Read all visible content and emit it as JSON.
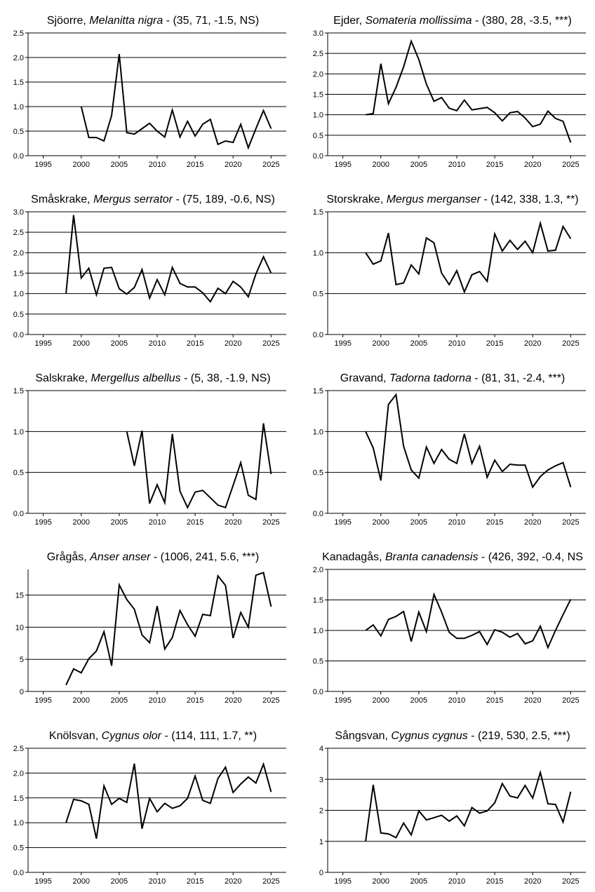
{
  "chart_data": [
    {
      "type": "line",
      "title_common": "Sjöorre",
      "title_latin": "Melanitta nigra",
      "title_stats": "(35, 71, -1.5, NS)",
      "xlim": [
        1993,
        2027
      ],
      "ylim": [
        0,
        2.5
      ],
      "yticks": [
        "0.0",
        "0.5",
        "1.0",
        "1.5",
        "2.0",
        "2.5"
      ],
      "xticks": [
        "1995",
        "2000",
        "2005",
        "2010",
        "2015",
        "2020",
        "2025"
      ],
      "x": [
        2000,
        2001,
        2002,
        2003,
        2004,
        2005,
        2006,
        2007,
        2008,
        2009,
        2010,
        2011,
        2012,
        2013,
        2014,
        2015,
        2016,
        2017,
        2018,
        2019,
        2020,
        2021,
        2022,
        2023,
        2024,
        2025
      ],
      "values": [
        1.0,
        0.37,
        0.37,
        0.3,
        0.82,
        2.07,
        0.47,
        0.44,
        0.55,
        0.66,
        0.5,
        0.38,
        0.93,
        0.38,
        0.7,
        0.4,
        0.64,
        0.74,
        0.23,
        0.3,
        0.27,
        0.64,
        0.16,
        0.55,
        0.92,
        0.55
      ]
    },
    {
      "type": "line",
      "title_common": "Ejder",
      "title_latin": "Somateria mollissima",
      "title_stats": "(380, 28, -3.5, ***)",
      "xlim": [
        1993,
        2027
      ],
      "ylim": [
        0,
        3.0
      ],
      "yticks": [
        "0.0",
        "0.5",
        "1.0",
        "1.5",
        "2.0",
        "2.5",
        "3.0"
      ],
      "xticks": [
        "1995",
        "2000",
        "2005",
        "2010",
        "2015",
        "2020",
        "2025"
      ],
      "x": [
        1998,
        1999,
        2000,
        2001,
        2002,
        2003,
        2004,
        2005,
        2006,
        2007,
        2008,
        2009,
        2010,
        2011,
        2012,
        2013,
        2014,
        2015,
        2016,
        2017,
        2018,
        2019,
        2020,
        2021,
        2022,
        2023,
        2024,
        2025
      ],
      "values": [
        1.0,
        1.03,
        2.25,
        1.27,
        1.67,
        2.17,
        2.8,
        2.35,
        1.75,
        1.33,
        1.42,
        1.16,
        1.1,
        1.36,
        1.12,
        1.15,
        1.18,
        1.05,
        0.85,
        1.05,
        1.08,
        0.92,
        0.71,
        0.77,
        1.09,
        0.91,
        0.84,
        0.32
      ]
    },
    {
      "type": "line",
      "title_common": "Småskrake",
      "title_latin": "Mergus serrator",
      "title_stats": "(75, 189, -0.6, NS)",
      "xlim": [
        1993,
        2027
      ],
      "ylim": [
        0,
        3.0
      ],
      "yticks": [
        "0.0",
        "0.5",
        "1.0",
        "1.5",
        "2.0",
        "2.5",
        "3.0"
      ],
      "xticks": [
        "1995",
        "2000",
        "2005",
        "2010",
        "2015",
        "2020",
        "2025"
      ],
      "x": [
        1998,
        1999,
        2000,
        2001,
        2002,
        2003,
        2004,
        2005,
        2006,
        2007,
        2008,
        2009,
        2010,
        2011,
        2012,
        2013,
        2014,
        2015,
        2016,
        2017,
        2018,
        2019,
        2020,
        2021,
        2022,
        2023,
        2024,
        2025
      ],
      "values": [
        1.0,
        2.92,
        1.38,
        1.62,
        0.97,
        1.62,
        1.64,
        1.12,
        0.99,
        1.15,
        1.59,
        0.89,
        1.34,
        0.97,
        1.64,
        1.25,
        1.16,
        1.16,
        1.02,
        0.8,
        1.13,
        1.0,
        1.3,
        1.16,
        0.92,
        1.48,
        1.9,
        1.5
      ]
    },
    {
      "type": "line",
      "title_common": "Storskrake",
      "title_latin": "Mergus merganser",
      "title_stats": "(142, 338, 1.3, **)",
      "xlim": [
        1993,
        2027
      ],
      "ylim": [
        0,
        1.5
      ],
      "yticks": [
        "0.0",
        "0.5",
        "1.0",
        "1.5"
      ],
      "xticks": [
        "1995",
        "2000",
        "2005",
        "2010",
        "2015",
        "2020",
        "2025"
      ],
      "x": [
        1998,
        1999,
        2000,
        2001,
        2002,
        2003,
        2004,
        2005,
        2006,
        2007,
        2008,
        2009,
        2010,
        2011,
        2012,
        2013,
        2014,
        2015,
        2016,
        2017,
        2018,
        2019,
        2020,
        2021,
        2022,
        2023,
        2024,
        2025
      ],
      "values": [
        1.0,
        0.86,
        0.9,
        1.24,
        0.61,
        0.63,
        0.85,
        0.74,
        1.18,
        1.12,
        0.75,
        0.61,
        0.78,
        0.52,
        0.73,
        0.77,
        0.65,
        1.23,
        1.02,
        1.15,
        1.04,
        1.14,
        1.0,
        1.36,
        1.02,
        1.03,
        1.32,
        1.17
      ]
    },
    {
      "type": "line",
      "title_common": "Salskrake",
      "title_latin": "Mergellus albellus",
      "title_stats": "(5, 38, -1.9, NS)",
      "xlim": [
        1993,
        2027
      ],
      "ylim": [
        0,
        1.5
      ],
      "yticks": [
        "0.0",
        "0.5",
        "1.0",
        "1.5"
      ],
      "xticks": [
        "1995",
        "2000",
        "2005",
        "2010",
        "2015",
        "2020",
        "2025"
      ],
      "x": [
        2006,
        2007,
        2008,
        2009,
        2010,
        2011,
        2012,
        2013,
        2014,
        2015,
        2016,
        2017,
        2018,
        2019,
        2020,
        2021,
        2022,
        2023,
        2024,
        2025
      ],
      "values": [
        1.0,
        0.58,
        1.01,
        0.12,
        0.35,
        0.13,
        0.97,
        0.27,
        0.07,
        0.26,
        0.28,
        0.19,
        0.1,
        0.07,
        0.34,
        0.62,
        0.22,
        0.17,
        1.1,
        0.48
      ]
    },
    {
      "type": "line",
      "title_common": "Gravand",
      "title_latin": "Tadorna tadorna",
      "title_stats": "(81, 31, -2.4, ***)",
      "xlim": [
        1993,
        2027
      ],
      "ylim": [
        0,
        1.5
      ],
      "yticks": [
        "0.0",
        "0.5",
        "1.0",
        "1.5"
      ],
      "xticks": [
        "1995",
        "2000",
        "2005",
        "2010",
        "2015",
        "2020",
        "2025"
      ],
      "x": [
        1998,
        1999,
        2000,
        2001,
        2002,
        2003,
        2004,
        2005,
        2006,
        2007,
        2008,
        2009,
        2010,
        2011,
        2012,
        2013,
        2014,
        2015,
        2016,
        2017,
        2018,
        2019,
        2020,
        2021,
        2022,
        2023,
        2024,
        2025
      ],
      "values": [
        1.0,
        0.8,
        0.4,
        1.33,
        1.45,
        0.82,
        0.53,
        0.43,
        0.81,
        0.61,
        0.78,
        0.66,
        0.61,
        0.97,
        0.61,
        0.82,
        0.44,
        0.65,
        0.51,
        0.6,
        0.59,
        0.59,
        0.32,
        0.45,
        0.53,
        0.58,
        0.62,
        0.32
      ]
    },
    {
      "type": "line",
      "title_common": "Grågås",
      "title_latin": "Anser anser",
      "title_stats": "(1006, 241, 5.6, ***)",
      "xlim": [
        1993,
        2027
      ],
      "ylim": [
        0,
        19
      ],
      "yticks": [
        "0",
        "5",
        "10",
        "15"
      ],
      "ytick_values": [
        0,
        5,
        10,
        15
      ],
      "xticks": [
        "1995",
        "2000",
        "2005",
        "2010",
        "2015",
        "2020",
        "2025"
      ],
      "x": [
        1998,
        1999,
        2000,
        2001,
        2002,
        2003,
        2004,
        2005,
        2006,
        2007,
        2008,
        2009,
        2010,
        2011,
        2012,
        2013,
        2014,
        2015,
        2016,
        2017,
        2018,
        2019,
        2020,
        2021,
        2022,
        2023,
        2024,
        2025
      ],
      "values": [
        1.0,
        3.5,
        2.9,
        5.1,
        6.3,
        9.3,
        4.0,
        16.6,
        14.3,
        12.8,
        8.8,
        7.6,
        13.3,
        6.6,
        8.4,
        12.6,
        10.4,
        8.6,
        12.0,
        11.8,
        18.0,
        16.5,
        8.3,
        12.3,
        10.0,
        18.1,
        18.5,
        13.2
      ]
    },
    {
      "type": "line",
      "title_common": "Kanadagås",
      "title_latin": "Branta canadensis",
      "title_stats": "(426, 392, -0.4, NS",
      "xlim": [
        1993,
        2027
      ],
      "ylim": [
        0,
        2.0
      ],
      "yticks": [
        "0.0",
        "0.5",
        "1.0",
        "1.5",
        "2.0"
      ],
      "xticks": [
        "1995",
        "2000",
        "2005",
        "2010",
        "2015",
        "2020",
        "2025"
      ],
      "x": [
        1998,
        1999,
        2000,
        2001,
        2002,
        2003,
        2004,
        2005,
        2006,
        2007,
        2008,
        2009,
        2010,
        2011,
        2012,
        2013,
        2014,
        2015,
        2016,
        2017,
        2018,
        2019,
        2020,
        2021,
        2022,
        2023,
        2024,
        2025
      ],
      "values": [
        1.0,
        1.09,
        0.91,
        1.18,
        1.23,
        1.31,
        0.82,
        1.3,
        0.98,
        1.59,
        1.3,
        0.97,
        0.87,
        0.87,
        0.92,
        0.98,
        0.77,
        1.01,
        0.97,
        0.89,
        0.95,
        0.78,
        0.83,
        1.07,
        0.72,
        1.0,
        1.26,
        1.51
      ]
    },
    {
      "type": "line",
      "title_common": "Knölsvan",
      "title_latin": "Cygnus olor",
      "title_stats": "(114, 111, 1.7, **)",
      "xlim": [
        1993,
        2027
      ],
      "ylim": [
        0,
        2.5
      ],
      "yticks": [
        "0.0",
        "0.5",
        "1.0",
        "1.5",
        "2.0",
        "2.5"
      ],
      "xticks": [
        "1995",
        "2000",
        "2005",
        "2010",
        "2015",
        "2020",
        "2025"
      ],
      "x": [
        1998,
        1999,
        2000,
        2001,
        2002,
        2003,
        2004,
        2005,
        2006,
        2007,
        2008,
        2009,
        2010,
        2011,
        2012,
        2013,
        2014,
        2015,
        2016,
        2017,
        2018,
        2019,
        2020,
        2021,
        2022,
        2023,
        2024,
        2025
      ],
      "values": [
        1.0,
        1.47,
        1.44,
        1.37,
        0.68,
        1.74,
        1.37,
        1.49,
        1.41,
        2.19,
        0.88,
        1.49,
        1.22,
        1.39,
        1.29,
        1.34,
        1.49,
        1.94,
        1.45,
        1.39,
        1.89,
        2.12,
        1.61,
        1.78,
        1.92,
        1.8,
        2.18,
        1.62
      ]
    },
    {
      "type": "line",
      "title_common": "Sångsvan",
      "title_latin": "Cygnus cygnus",
      "title_stats": "(219, 530, 2.5, ***)",
      "xlim": [
        1993,
        2027
      ],
      "ylim": [
        0,
        4
      ],
      "yticks": [
        "0",
        "1",
        "2",
        "3",
        "4"
      ],
      "xticks": [
        "1995",
        "2000",
        "2005",
        "2010",
        "2015",
        "2020",
        "2025"
      ],
      "x": [
        1998,
        1999,
        2000,
        2001,
        2002,
        2003,
        2004,
        2005,
        2006,
        2007,
        2008,
        2009,
        2010,
        2011,
        2012,
        2013,
        2014,
        2015,
        2016,
        2017,
        2018,
        2019,
        2020,
        2021,
        2022,
        2023,
        2024,
        2025
      ],
      "values": [
        1.0,
        2.82,
        1.27,
        1.24,
        1.12,
        1.59,
        1.21,
        1.98,
        1.69,
        1.76,
        1.84,
        1.65,
        1.82,
        1.5,
        2.09,
        1.91,
        1.98,
        2.24,
        2.86,
        2.46,
        2.4,
        2.8,
        2.39,
        3.22,
        2.21,
        2.19,
        1.62,
        2.6
      ]
    }
  ]
}
